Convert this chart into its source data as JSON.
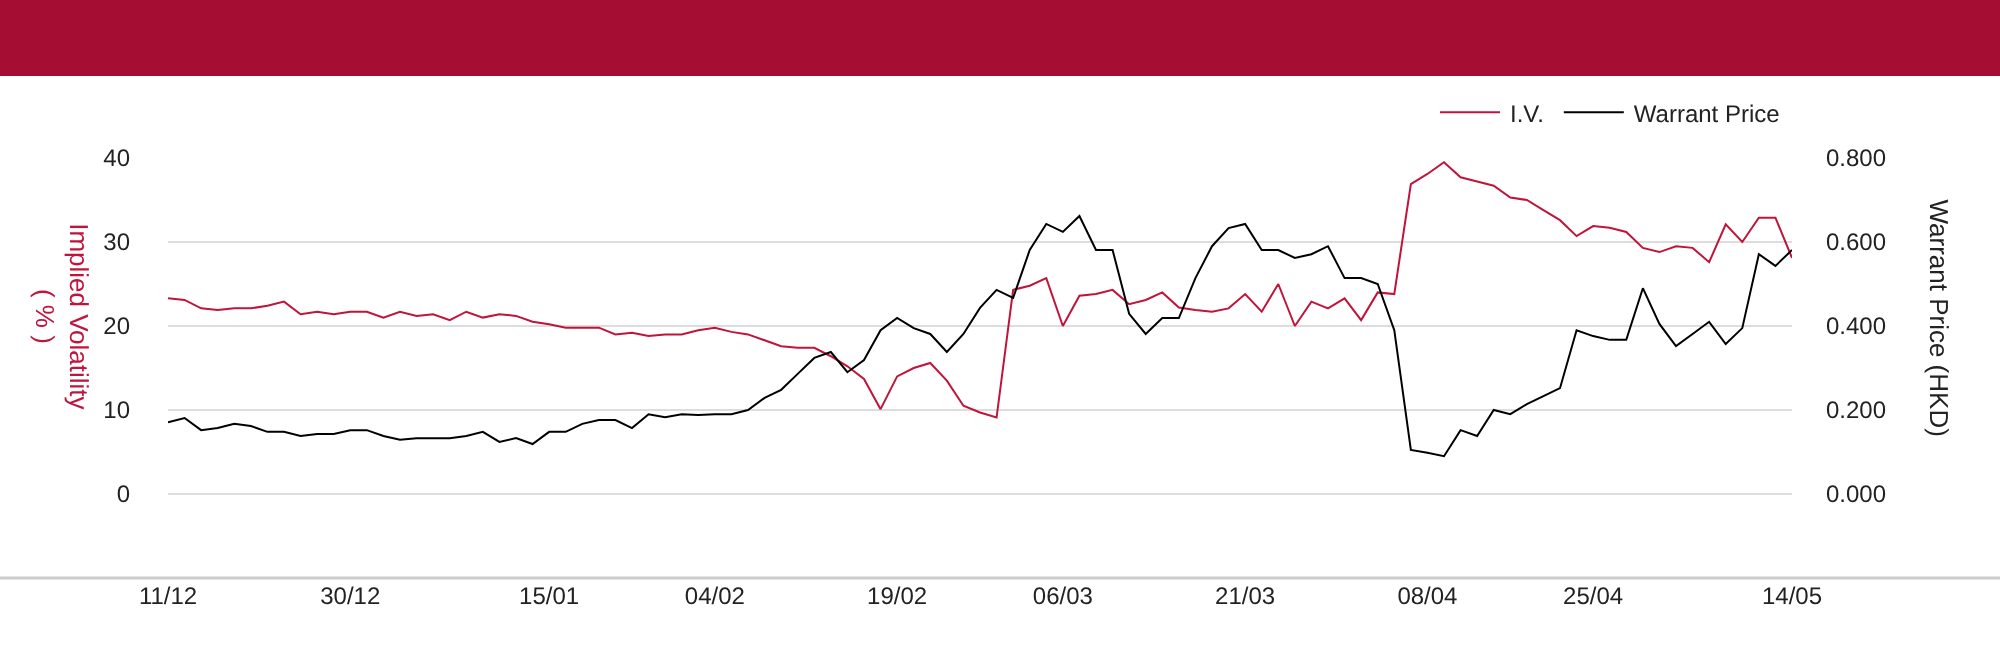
{
  "chart_data": {
    "type": "line",
    "ylabel": "Implied Volatility\n( % )",
    "y2label": "Warrant Price (HKD)",
    "categories": [
      "11/12",
      null,
      null,
      null,
      null,
      null,
      null,
      null,
      null,
      null,
      null,
      "30/12",
      null,
      null,
      null,
      null,
      null,
      null,
      null,
      null,
      null,
      null,
      null,
      "15/01",
      null,
      null,
      null,
      null,
      null,
      null,
      null,
      null,
      null,
      "04/02",
      null,
      null,
      null,
      null,
      null,
      null,
      null,
      null,
      null,
      null,
      "19/02",
      null,
      null,
      null,
      null,
      null,
      null,
      null,
      null,
      null,
      "06/03",
      null,
      null,
      null,
      null,
      null,
      null,
      null,
      null,
      null,
      null,
      "21/03",
      null,
      null,
      null,
      null,
      null,
      null,
      null,
      null,
      null,
      null,
      "08/04",
      null,
      null,
      null,
      null,
      null,
      null,
      null,
      null,
      null,
      "25/04",
      null,
      null,
      null,
      null,
      null,
      null,
      null,
      null,
      null,
      null,
      null,
      "14/05"
    ],
    "series": [
      {
        "name": "I.V.",
        "color": "#c0143c",
        "values": [
          23.3,
          23.1,
          22.1,
          21.9,
          22.1,
          22.1,
          22.4,
          22.9,
          21.4,
          21.7,
          21.4,
          21.7,
          21.7,
          21.0,
          21.7,
          21.2,
          21.4,
          20.7,
          21.7,
          21.0,
          21.4,
          21.2,
          20.5,
          20.2,
          19.8,
          19.8,
          19.8,
          19.0,
          19.2,
          18.8,
          19.0,
          19.0,
          19.5,
          19.8,
          19.3,
          19.0,
          18.3,
          17.6,
          17.4,
          17.4,
          16.4,
          15.2,
          13.7,
          10.1,
          14.0,
          15.0,
          15.6,
          13.5,
          10.5,
          9.7,
          9.1,
          24.3,
          24.8,
          25.7,
          20.0,
          23.6,
          23.8,
          24.3,
          22.6,
          23.1,
          24.0,
          22.2,
          21.9,
          21.7,
          22.1,
          23.8,
          21.7,
          25.0,
          20.0,
          22.9,
          22.1,
          23.3,
          20.7,
          24.0,
          23.8,
          36.9,
          38.1,
          39.5,
          37.7,
          37.2,
          36.7,
          35.3,
          35.0,
          33.8,
          32.6,
          30.7,
          31.9,
          31.7,
          31.2,
          29.3,
          28.8,
          29.5,
          29.3,
          27.6,
          32.1,
          30.0,
          32.9,
          32.9,
          28.1
        ]
      },
      {
        "name": "Warrant Price",
        "color": "#000000",
        "axis": "y2",
        "values": [
          0.171,
          0.181,
          0.152,
          0.157,
          0.167,
          0.162,
          0.148,
          0.148,
          0.138,
          0.143,
          0.143,
          0.152,
          0.152,
          0.138,
          0.129,
          0.133,
          0.133,
          0.133,
          0.138,
          0.148,
          0.124,
          0.133,
          0.119,
          0.148,
          0.148,
          0.167,
          0.176,
          0.176,
          0.157,
          0.19,
          0.183,
          0.19,
          0.188,
          0.19,
          0.19,
          0.2,
          0.229,
          0.248,
          0.286,
          0.324,
          0.338,
          0.29,
          0.319,
          0.39,
          0.419,
          0.395,
          0.381,
          0.338,
          0.381,
          0.443,
          0.486,
          0.467,
          0.581,
          0.643,
          0.624,
          0.662,
          0.581,
          0.581,
          0.429,
          0.381,
          0.419,
          0.419,
          0.514,
          0.59,
          0.633,
          0.643,
          0.581,
          0.581,
          0.562,
          0.571,
          0.59,
          0.514,
          0.514,
          0.5,
          0.39,
          0.105,
          0.098,
          0.09,
          0.152,
          0.138,
          0.2,
          0.19,
          0.214,
          0.233,
          0.252,
          0.39,
          0.376,
          0.367,
          0.367,
          0.49,
          0.405,
          0.352,
          0.381,
          0.41,
          0.357,
          0.395,
          0.571,
          0.543,
          0.581
        ]
      }
    ],
    "ylim": [
      -10,
      40
    ],
    "yticks": [
      0,
      10,
      20,
      30,
      40
    ],
    "y2lim": [
      -0.2,
      0.8
    ],
    "y2ticks": [
      {
        "value": 0,
        "label": "0.000"
      },
      {
        "value": 0.2,
        "label": "0.200"
      },
      {
        "value": 0.4,
        "label": "0.400"
      },
      {
        "value": 0.6,
        "label": "0.600"
      },
      {
        "value": 0.8,
        "label": "0.800"
      }
    ],
    "grid": "y",
    "legend": "top right",
    "line_style": "solid"
  }
}
